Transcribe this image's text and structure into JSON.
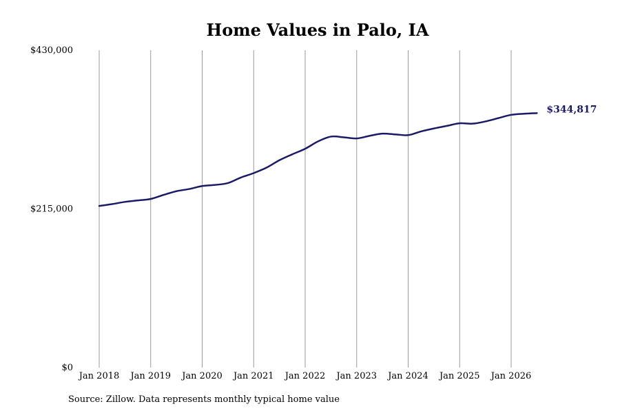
{
  "chart_data": {
    "type": "line",
    "title": "Home Values in Palo, IA",
    "xlabel": "",
    "ylabel": "",
    "x_tick_labels": [
      "Jan 2018",
      "Jan 2019",
      "Jan 2020",
      "Jan 2021",
      "Jan 2022",
      "Jan 2023",
      "Jan 2024",
      "Jan 2025",
      "Jan 2026"
    ],
    "y_tick_labels": [
      "$430,000",
      "$215,000",
      "$0"
    ],
    "y_ticks": [
      430000,
      215000,
      0
    ],
    "ylim": [
      0,
      430000
    ],
    "xlim": [
      "2018-01",
      "2026-07"
    ],
    "grid": "vertical lines at each January",
    "line_color": "#1a1a66",
    "end_label": "$344,817",
    "series": [
      {
        "x": [
          "2018-01",
          "2018-04",
          "2018-07",
          "2018-10",
          "2019-01",
          "2019-04",
          "2019-07",
          "2019-10",
          "2020-01",
          "2020-04",
          "2020-07",
          "2020-10",
          "2021-01",
          "2021-04",
          "2021-07",
          "2021-10",
          "2022-01",
          "2022-04",
          "2022-07",
          "2022-10",
          "2023-01",
          "2023-04",
          "2023-07",
          "2023-10",
          "2024-01",
          "2024-04",
          "2024-07",
          "2024-10",
          "2025-01",
          "2025-04",
          "2025-07",
          "2025-10",
          "2026-01",
          "2026-04",
          "2026-07"
        ],
        "values": [
          219000,
          221500,
          224500,
          226500,
          228500,
          234000,
          239000,
          242000,
          246000,
          247500,
          250000,
          257500,
          263500,
          271000,
          281000,
          289000,
          296500,
          306500,
          313000,
          312000,
          310500,
          314000,
          317000,
          316000,
          315000,
          320000,
          324000,
          327500,
          331000,
          330500,
          333500,
          338000,
          342500,
          344000,
          344817
        ]
      }
    ]
  },
  "footer": {
    "source": "Source: Zillow. Data represents monthly typical home value"
  }
}
